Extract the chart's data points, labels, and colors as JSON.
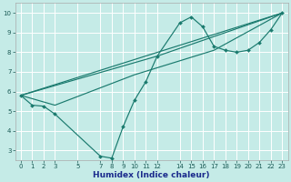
{
  "background_color": "#c5ebe7",
  "grid_color": "#ffffff",
  "line_color": "#1a7a6e",
  "xlabel": "Humidex (Indice chaleur)",
  "xlim": [
    -0.5,
    23.5
  ],
  "ylim": [
    2.5,
    10.5
  ],
  "xticks": [
    0,
    1,
    2,
    3,
    5,
    7,
    8,
    9,
    10,
    11,
    12,
    14,
    15,
    16,
    17,
    18,
    19,
    20,
    21,
    22,
    23
  ],
  "yticks": [
    3,
    4,
    5,
    6,
    7,
    8,
    9,
    10
  ],
  "series1_x": [
    0,
    1,
    2,
    3,
    7,
    8,
    9,
    10,
    11,
    12,
    14,
    15,
    16,
    17,
    18,
    19,
    20,
    21,
    22,
    23
  ],
  "series1_y": [
    5.8,
    5.3,
    5.25,
    4.85,
    2.7,
    2.6,
    4.2,
    5.55,
    6.5,
    7.8,
    9.5,
    9.8,
    9.3,
    8.3,
    8.1,
    8.0,
    8.1,
    8.5,
    9.15,
    10.0
  ],
  "series2_x": [
    0,
    23
  ],
  "series2_y": [
    5.8,
    10.0
  ],
  "series3_x": [
    0,
    12,
    23
  ],
  "series3_y": [
    5.8,
    7.8,
    10.0
  ],
  "series4_x": [
    0,
    3,
    10,
    17,
    23
  ],
  "series4_y": [
    5.8,
    5.3,
    6.85,
    8.1,
    10.0
  ]
}
